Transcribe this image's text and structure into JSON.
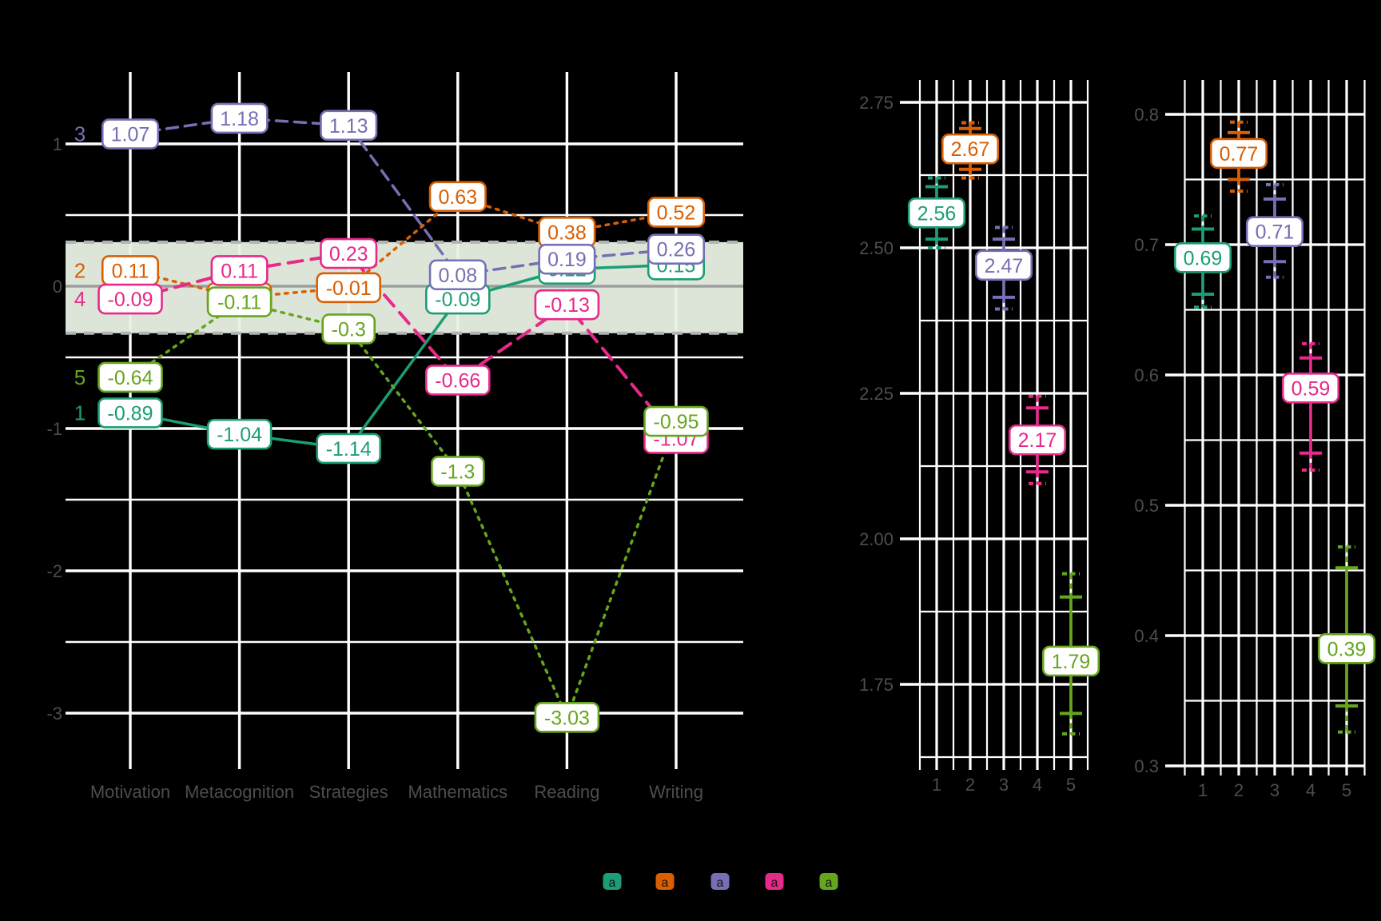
{
  "background": "#000000",
  "grid_color": "#FFFFFF",
  "axis_text_color": "#4D4D4D",
  "zero_line_color": "#9C9C9C",
  "band_fill": "#E9F1E5",
  "band_border_color": "#B3B3B3",
  "palette": {
    "teal": "#1B9E77",
    "orange": "#D95F02",
    "purple": "#7570B3",
    "magenta": "#E7298A",
    "green": "#66A61E"
  },
  "chart_data": [
    {
      "id": "profile-line-plot",
      "type": "line",
      "categories": [
        "Motivation",
        "Metacognition",
        "Strategies",
        "Mathematics",
        "Reading",
        "Writing"
      ],
      "y_tick_labels": [
        "1",
        "0",
        "-1",
        "-2",
        "-3"
      ],
      "y_ticks": [
        1,
        0,
        -1,
        -2,
        -3
      ],
      "ylim": [
        -3.24,
        1.51
      ],
      "grid": "on",
      "zero_line": 0,
      "band": {
        "from": -0.33,
        "to": 0.31
      },
      "series": [
        {
          "name": "1",
          "color": "teal",
          "linetype": "solid",
          "line_width": 3.5,
          "values": [
            -0.89,
            -1.04,
            -1.14,
            -0.09,
            0.12,
            0.15
          ],
          "point_labels": [
            "-0.89",
            "-1.04",
            "-1.14",
            "-0.09",
            "0.12",
            "0.15"
          ],
          "hidden_label_indices": [
            4
          ]
        },
        {
          "name": "2",
          "color": "orange",
          "linetype": "dotted",
          "line_width": 3.5,
          "values": [
            0.11,
            -0.08,
            -0.01,
            0.63,
            0.38,
            0.52
          ],
          "point_labels": [
            "0.11",
            "-0.08",
            "-0.01",
            "0.63",
            "0.38",
            "0.52"
          ],
          "hidden_label_indices": [
            1
          ]
        },
        {
          "name": "3",
          "color": "purple",
          "linetype": "dashed",
          "line_width": 3.5,
          "values": [
            1.07,
            1.18,
            1.13,
            0.08,
            0.19,
            0.26
          ],
          "point_labels": [
            "1.07",
            "1.18",
            "1.13",
            "0.08",
            "0.19",
            "0.26"
          ],
          "hidden_label_indices": []
        },
        {
          "name": "4",
          "color": "magenta",
          "linetype": "longdash",
          "line_width": 4,
          "values": [
            -0.09,
            0.11,
            0.23,
            -0.66,
            -0.13,
            -1.07
          ],
          "point_labels": [
            "-0.09",
            "0.11",
            "0.23",
            "-0.66",
            "-0.13",
            "-1.07"
          ],
          "hidden_label_indices": [
            5
          ]
        },
        {
          "name": "5",
          "color": "green",
          "linetype": "dotted",
          "line_width": 3.5,
          "values": [
            -0.64,
            -0.11,
            -0.3,
            -1.3,
            -3.03,
            -0.95
          ],
          "point_labels": [
            "-0.64",
            "-0.11",
            "-0.3",
            "-1.3",
            "-3.03",
            "-0.95"
          ],
          "hidden_label_indices": []
        }
      ]
    },
    {
      "id": "means-errorbar-panel",
      "type": "scatter",
      "x_tick_labels": [
        "1",
        "2",
        "3",
        "4",
        "5"
      ],
      "y_tick_labels": [
        "2.75",
        "2.50",
        "2.25",
        "2.00",
        "1.75"
      ],
      "y_ticks": [
        2.75,
        2.5,
        2.25,
        2.0,
        1.75
      ],
      "y_minor_ticks": [
        2.625,
        2.375,
        2.125,
        1.875,
        1.625
      ],
      "ylim": [
        1.6,
        2.79
      ],
      "grid": "on",
      "points": [
        {
          "x": 1,
          "value": 2.56,
          "label": "2.56",
          "color": "teal",
          "inner_interval": [
            2.515,
            2.605
          ],
          "outer_interval": [
            2.5,
            2.62
          ]
        },
        {
          "x": 2,
          "value": 2.67,
          "label": "2.67",
          "color": "orange",
          "inner_interval": [
            2.635,
            2.705
          ],
          "outer_interval": [
            2.62,
            2.715
          ]
        },
        {
          "x": 3,
          "value": 2.47,
          "label": "2.47",
          "color": "purple",
          "inner_interval": [
            2.415,
            2.515
          ],
          "outer_interval": [
            2.395,
            2.535
          ]
        },
        {
          "x": 4,
          "value": 2.17,
          "label": "2.17",
          "color": "magenta",
          "inner_interval": [
            2.115,
            2.225
          ],
          "outer_interval": [
            2.095,
            2.245
          ]
        },
        {
          "x": 5,
          "value": 1.79,
          "label": "1.79",
          "color": "green",
          "inner_interval": [
            1.7,
            1.9
          ],
          "outer_interval": [
            1.665,
            1.94
          ]
        }
      ]
    },
    {
      "id": "variance-errorbar-panel",
      "type": "scatter",
      "x_tick_labels": [
        "1",
        "2",
        "3",
        "4",
        "5"
      ],
      "y_tick_labels": [
        "0.8",
        "0.7",
        "0.6",
        "0.5",
        "0.4",
        "0.3"
      ],
      "y_ticks": [
        0.8,
        0.7,
        0.6,
        0.5,
        0.4,
        0.3
      ],
      "y_minor_ticks": [
        0.75,
        0.65,
        0.55,
        0.45,
        0.35
      ],
      "ylim": [
        0.29,
        0.826
      ],
      "grid": "on",
      "points": [
        {
          "x": 1,
          "value": 0.69,
          "label": "0.69",
          "color": "teal",
          "inner_interval": [
            0.662,
            0.712
          ],
          "outer_interval": [
            0.652,
            0.722
          ]
        },
        {
          "x": 2,
          "value": 0.77,
          "label": "0.77",
          "color": "orange",
          "inner_interval": [
            0.75,
            0.786
          ],
          "outer_interval": [
            0.741,
            0.794
          ]
        },
        {
          "x": 3,
          "value": 0.71,
          "label": "0.71",
          "color": "purple",
          "inner_interval": [
            0.687,
            0.735
          ],
          "outer_interval": [
            0.675,
            0.746
          ]
        },
        {
          "x": 4,
          "value": 0.59,
          "label": "0.59",
          "color": "magenta",
          "inner_interval": [
            0.54,
            0.613
          ],
          "outer_interval": [
            0.527,
            0.624
          ]
        },
        {
          "x": 5,
          "value": 0.39,
          "label": "0.39",
          "color": "green",
          "inner_interval": [
            0.346,
            0.452
          ],
          "outer_interval": [
            0.326,
            0.468
          ]
        }
      ]
    }
  ],
  "legend": {
    "keys": [
      {
        "glyph": "a",
        "color": "teal"
      },
      {
        "glyph": "a",
        "color": "orange"
      },
      {
        "glyph": "a",
        "color": "purple"
      },
      {
        "glyph": "a",
        "color": "magenta"
      },
      {
        "glyph": "a",
        "color": "green"
      }
    ]
  }
}
